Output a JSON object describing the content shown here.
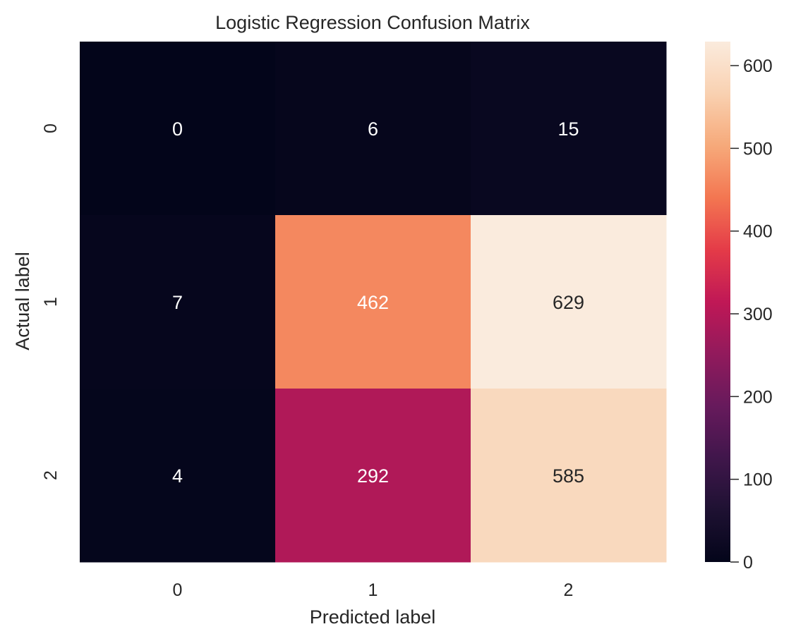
{
  "chart_data": {
    "type": "heatmap",
    "title": "Logistic Regression Confusion Matrix",
    "xlabel": "Predicted label",
    "ylabel": "Actual label",
    "x_categories": [
      "0",
      "1",
      "2"
    ],
    "y_categories": [
      "0",
      "1",
      "2"
    ],
    "values": [
      [
        0,
        6,
        15
      ],
      [
        7,
        462,
        629
      ],
      [
        4,
        292,
        585
      ]
    ],
    "colormap": "rocket",
    "colorbar": {
      "range": [
        0,
        629
      ],
      "ticks": [
        0,
        100,
        200,
        300,
        400,
        500,
        600
      ],
      "tick_labels": [
        "0",
        "100",
        "200",
        "300",
        "400",
        "500",
        "600"
      ]
    },
    "annotation_colors": {
      "on_dark": "#ffffff",
      "on_light": "#262626"
    },
    "grid": false
  }
}
